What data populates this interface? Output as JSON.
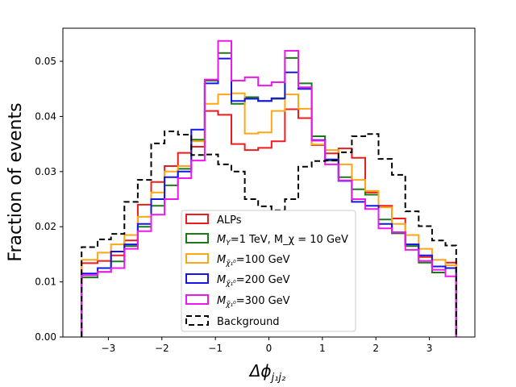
{
  "chart_data": {
    "type": "step-histogram",
    "ylabel": "Fraction of events",
    "xlabel_base": "Δϕ",
    "xlabel_sub": "j₁j₂",
    "xlim": [
      -3.85,
      3.85
    ],
    "ylim": [
      0.0,
      0.056
    ],
    "x_ticks": [
      -3,
      -2,
      -1,
      0,
      1,
      2,
      3
    ],
    "x_tick_labels": [
      "−3",
      "−2",
      "−1",
      "0",
      "1",
      "2",
      "3"
    ],
    "y_ticks": [
      0.0,
      0.01,
      0.02,
      0.03,
      0.04,
      0.05
    ],
    "y_tick_labels": [
      "0.00",
      "0.01",
      "0.02",
      "0.03",
      "0.04",
      "0.05"
    ],
    "grid": false,
    "legend_position": "lower-center",
    "bin_edges": [
      -3.5,
      -3.2,
      -2.95,
      -2.7,
      -2.45,
      -2.2,
      -1.95,
      -1.7,
      -1.45,
      -1.2,
      -0.95,
      -0.7,
      -0.45,
      -0.2,
      0.05,
      0.3,
      0.55,
      0.8,
      1.05,
      1.3,
      1.55,
      1.8,
      2.05,
      2.3,
      2.55,
      2.8,
      3.05,
      3.3,
      3.5
    ],
    "series": [
      {
        "label_main": "ALPs",
        "label_sub": "",
        "label_rest": "",
        "color": "#ee1c1c",
        "dashed": false,
        "values": [
          0.0134,
          0.0138,
          0.0148,
          0.0175,
          0.024,
          0.0281,
          0.031,
          0.0334,
          0.0345,
          0.041,
          0.0403,
          0.035,
          0.0339,
          0.0343,
          0.0355,
          0.0413,
          0.0397,
          0.0348,
          0.0333,
          0.0342,
          0.0325,
          0.0262,
          0.0238,
          0.0215,
          0.0168,
          0.0145,
          0.0128,
          0.0135
        ]
      },
      {
        "label_main": "M",
        "label_sub": "Y",
        "label_rest": "=1 TeV, M_χ = 10 GeV",
        "color": "#1a7a1a",
        "dashed": false,
        "values": [
          0.0108,
          0.0118,
          0.0137,
          0.0165,
          0.02,
          0.0238,
          0.0275,
          0.0305,
          0.0358,
          0.0465,
          0.0515,
          0.0423,
          0.0435,
          0.0428,
          0.0432,
          0.0506,
          0.046,
          0.0364,
          0.032,
          0.029,
          0.0268,
          0.0258,
          0.0213,
          0.0188,
          0.0165,
          0.0135,
          0.0117,
          0.0125
        ]
      },
      {
        "label_main": "M",
        "label_sub": "χ̃₁⁰",
        "label_rest": "=100 GeV",
        "color": "#ffa616",
        "dashed": false,
        "values": [
          0.014,
          0.0153,
          0.0168,
          0.0185,
          0.0218,
          0.0262,
          0.03,
          0.031,
          0.0355,
          0.0423,
          0.044,
          0.0442,
          0.0369,
          0.0371,
          0.041,
          0.044,
          0.0414,
          0.0349,
          0.0339,
          0.0313,
          0.0285,
          0.0265,
          0.0235,
          0.0205,
          0.0185,
          0.016,
          0.014,
          0.013
        ]
      },
      {
        "label_main": "M",
        "label_sub": "χ̃₁⁰",
        "label_rest": "=200 GeV",
        "color": "#1515e8",
        "dashed": false,
        "values": [
          0.0115,
          0.0125,
          0.0155,
          0.0168,
          0.0205,
          0.025,
          0.029,
          0.03,
          0.0376,
          0.046,
          0.0505,
          0.0428,
          0.0432,
          0.0428,
          0.0433,
          0.048,
          0.045,
          0.0357,
          0.0322,
          0.0283,
          0.0245,
          0.0238,
          0.0205,
          0.019,
          0.0168,
          0.0148,
          0.0128,
          0.0125
        ]
      },
      {
        "label_main": "M",
        "label_sub": "χ̃₁⁰",
        "label_rest": "=300 GeV",
        "color": "#ee18ee",
        "dashed": false,
        "values": [
          0.0112,
          0.0118,
          0.0125,
          0.016,
          0.0192,
          0.0222,
          0.025,
          0.0288,
          0.032,
          0.0467,
          0.0537,
          0.0465,
          0.0471,
          0.0456,
          0.0462,
          0.0519,
          0.0453,
          0.0356,
          0.0313,
          0.0284,
          0.025,
          0.0232,
          0.0197,
          0.019,
          0.0158,
          0.0138,
          0.0122,
          0.011
        ]
      },
      {
        "label_main": "Background",
        "label_sub": "",
        "label_rest": "",
        "color": "#000000",
        "dashed": true,
        "values": [
          0.0163,
          0.0177,
          0.0187,
          0.0245,
          0.0285,
          0.0351,
          0.0373,
          0.0367,
          0.033,
          0.0331,
          0.0313,
          0.03,
          0.025,
          0.0237,
          0.023,
          0.025,
          0.0309,
          0.0319,
          0.032,
          0.0335,
          0.0364,
          0.0368,
          0.0323,
          0.0294,
          0.0228,
          0.0201,
          0.0175,
          0.0166
        ]
      }
    ]
  }
}
